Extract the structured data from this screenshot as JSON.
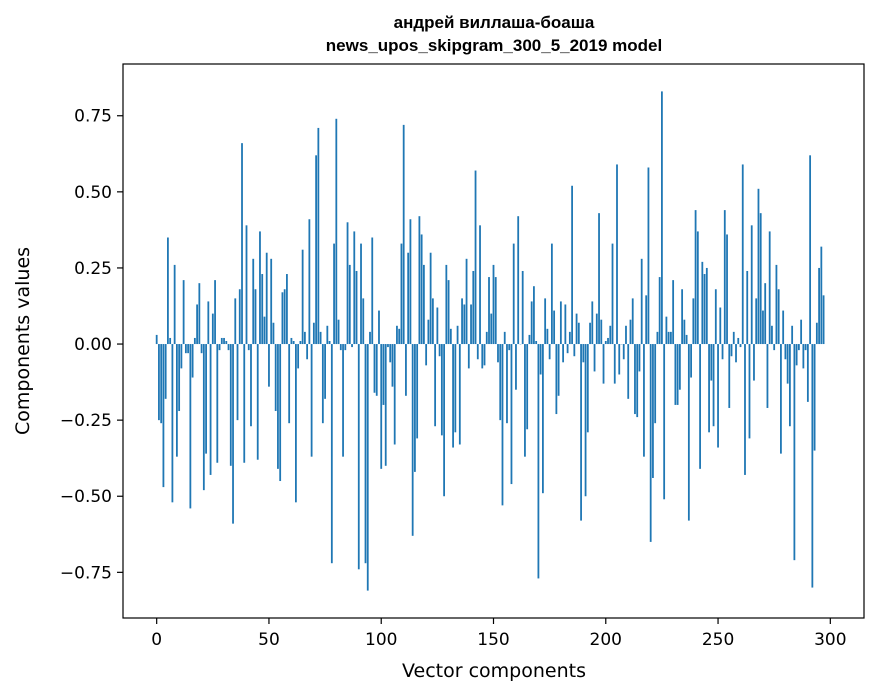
{
  "chart_data": {
    "type": "bar",
    "title_line1": "андрей виллаша-боаша",
    "title_line2": "news_upos_skipgram_300_5_2019 model",
    "xlabel": "Vector components",
    "ylabel": "Components values",
    "xlim": [
      -15,
      315
    ],
    "ylim": [
      -0.9,
      0.92
    ],
    "xticks": [
      0,
      50,
      100,
      150,
      200,
      250,
      300
    ],
    "xtick_labels": [
      "0",
      "50",
      "100",
      "150",
      "200",
      "250",
      "300"
    ],
    "yticks": [
      -0.75,
      -0.5,
      -0.25,
      0.0,
      0.25,
      0.5,
      0.75
    ],
    "ytick_labels": [
      "−0.75",
      "−0.50",
      "−0.25",
      "0.00",
      "0.25",
      "0.50",
      "0.75"
    ],
    "bar_color": "#1f77b4",
    "values": [
      0.03,
      -0.25,
      -0.26,
      -0.47,
      -0.18,
      0.35,
      0.02,
      -0.52,
      0.26,
      -0.37,
      -0.22,
      -0.08,
      0.21,
      -0.03,
      -0.03,
      -0.54,
      -0.11,
      0.02,
      0.13,
      0.2,
      -0.03,
      -0.48,
      -0.36,
      0.14,
      -0.43,
      0.1,
      0.21,
      -0.39,
      -0.02,
      0.02,
      0.02,
      0.01,
      -0.02,
      -0.4,
      -0.59,
      0.15,
      -0.25,
      0.18,
      0.66,
      -0.39,
      0.39,
      -0.02,
      -0.27,
      0.28,
      0.18,
      -0.38,
      0.37,
      0.23,
      0.09,
      0.3,
      -0.14,
      0.28,
      0.07,
      -0.22,
      -0.41,
      -0.45,
      0.17,
      0.18,
      0.23,
      -0.26,
      0.02,
      0.01,
      -0.52,
      -0.08,
      0.01,
      0.31,
      0.04,
      -0.05,
      0.41,
      -0.37,
      0.07,
      0.62,
      0.71,
      0.04,
      -0.26,
      -0.18,
      0.06,
      0.01,
      -0.72,
      0.33,
      0.74,
      0.08,
      -0.02,
      -0.37,
      -0.02,
      0.4,
      0.26,
      -0.01,
      0.37,
      0.24,
      -0.74,
      0.33,
      0.15,
      -0.72,
      -0.81,
      0.04,
      0.35,
      -0.16,
      -0.17,
      0.11,
      -0.41,
      -0.2,
      -0.4,
      -0.01,
      -0.06,
      -0.14,
      -0.33,
      0.06,
      0.05,
      0.33,
      0.72,
      -0.17,
      0.3,
      0.41,
      -0.63,
      -0.42,
      -0.31,
      0.42,
      0.36,
      0.26,
      -0.07,
      0.08,
      0.3,
      0.15,
      -0.27,
      0.12,
      -0.04,
      -0.3,
      -0.5,
      0.26,
      0.21,
      0.05,
      -0.34,
      -0.29,
      0.06,
      -0.33,
      0.15,
      0.13,
      0.28,
      -0.08,
      0.13,
      0.24,
      0.57,
      -0.05,
      0.39,
      -0.08,
      -0.07,
      0.04,
      0.22,
      0.1,
      0.26,
      0.22,
      -0.06,
      -0.25,
      -0.53,
      0.04,
      -0.26,
      -0.02,
      -0.46,
      0.33,
      -0.15,
      0.42,
      0.0,
      0.24,
      -0.37,
      -0.28,
      0.03,
      0.14,
      0.19,
      0.01,
      -0.77,
      -0.1,
      -0.49,
      0.15,
      0.05,
      -0.05,
      0.33,
      0.11,
      -0.23,
      -0.17,
      0.14,
      -0.06,
      0.13,
      -0.03,
      0.04,
      0.52,
      -0.04,
      0.1,
      0.07,
      -0.58,
      -0.06,
      -0.5,
      -0.29,
      0.07,
      0.14,
      -0.09,
      0.1,
      0.43,
      0.08,
      -0.13,
      0.01,
      0.02,
      0.06,
      0.33,
      -0.13,
      0.59,
      -0.1,
      0.0,
      -0.05,
      0.06,
      -0.18,
      0.08,
      0.15,
      -0.23,
      -0.24,
      -0.09,
      0.28,
      -0.37,
      0.16,
      0.58,
      -0.65,
      -0.44,
      -0.26,
      0.04,
      0.22,
      0.83,
      -0.51,
      0.09,
      0.04,
      0.04,
      0.21,
      -0.2,
      -0.2,
      -0.15,
      0.18,
      0.08,
      0.03,
      -0.58,
      -0.11,
      0.15,
      0.44,
      0.37,
      -0.41,
      0.27,
      0.23,
      0.25,
      -0.29,
      -0.12,
      -0.27,
      0.18,
      -0.34,
      0.12,
      -0.05,
      0.44,
      0.36,
      -0.21,
      -0.04,
      0.04,
      -0.06,
      0.02,
      -0.01,
      0.59,
      -0.43,
      0.24,
      -0.31,
      0.39,
      -0.12,
      0.15,
      0.51,
      0.43,
      0.11,
      0.2,
      -0.21,
      0.37,
      0.06,
      -0.02,
      0.26,
      0.18,
      -0.36,
      0.11,
      -0.05,
      -0.13,
      -0.27,
      0.06,
      -0.71,
      -0.07,
      -0.02,
      0.08,
      -0.08,
      -0.02,
      -0.19,
      0.62,
      -0.8,
      -0.35,
      0.07,
      0.25,
      0.32,
      0.16
    ]
  }
}
